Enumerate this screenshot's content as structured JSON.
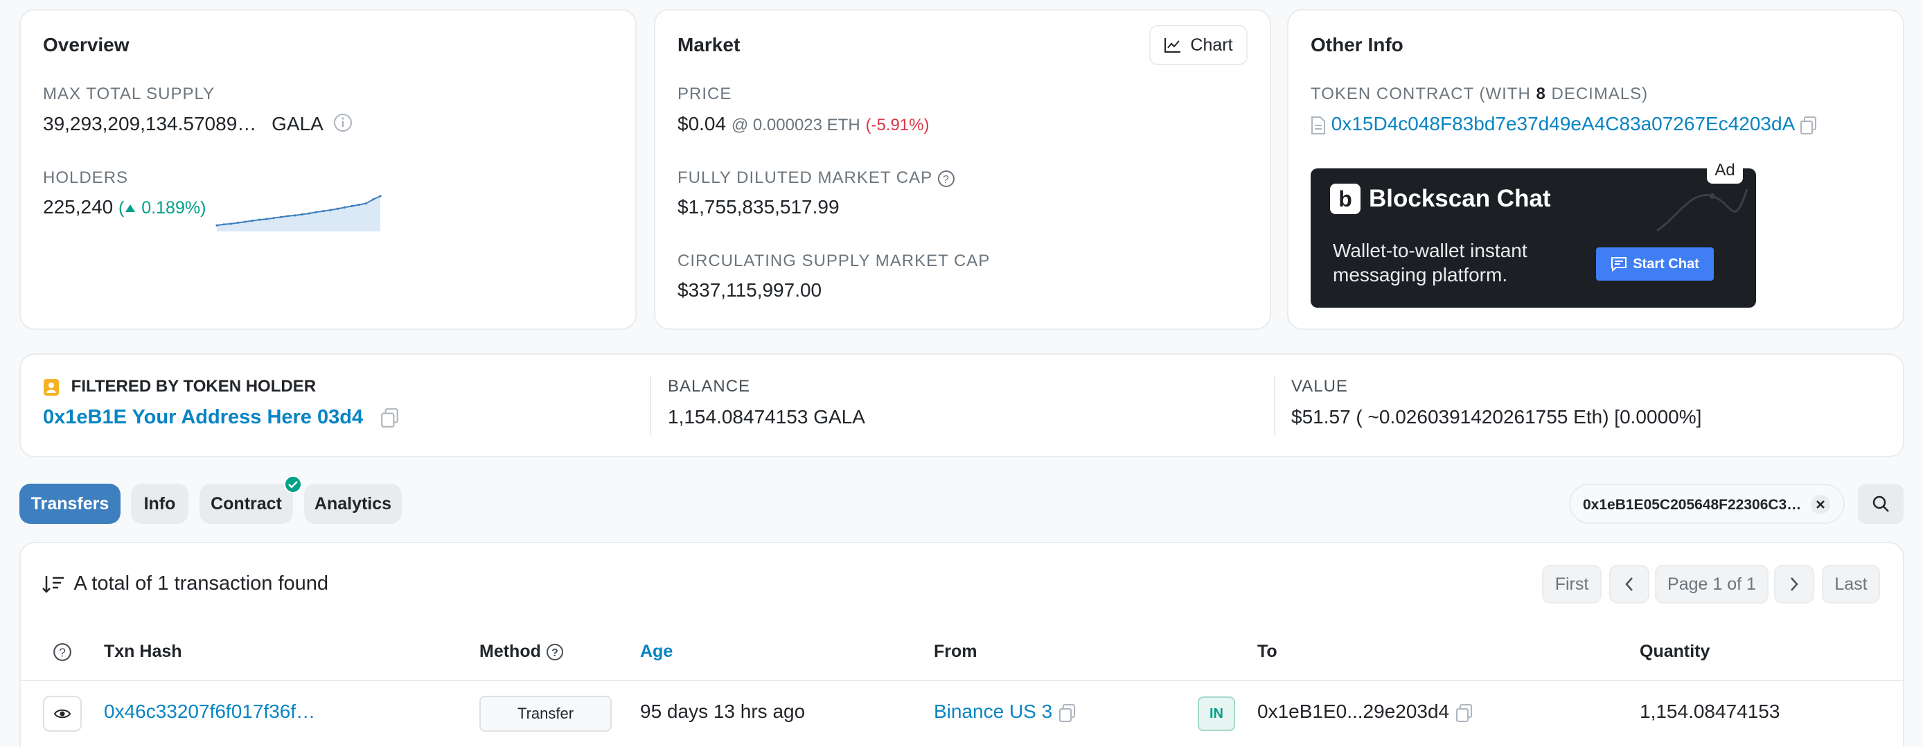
{
  "overview": {
    "title": "Overview",
    "max_supply_label": "MAX TOTAL SUPPLY",
    "max_supply_value": "39,293,209,134.57089…",
    "max_supply_unit": "GALA",
    "holders_label": "HOLDERS",
    "holders_value": "225,240",
    "holders_change": "0.189%",
    "holders_trend": [
      0.12,
      0.15,
      0.17,
      0.2,
      0.23,
      0.26,
      0.29,
      0.31,
      0.34,
      0.37,
      0.4,
      0.42,
      0.45,
      0.48,
      0.52,
      0.55,
      0.58,
      0.62,
      0.66,
      0.7,
      0.74,
      0.78,
      0.9,
      1.0
    ]
  },
  "market": {
    "title": "Market",
    "chart_button": "Chart",
    "price_label": "PRICE",
    "price_value": "$0.04",
    "price_eth": "@ 0.000023 ETH",
    "price_change": "(-5.91%)",
    "fdmc_label": "FULLY DILUTED MARKET CAP",
    "fdmc_value": "$1,755,835,517.99",
    "csmc_label": "CIRCULATING SUPPLY MARKET CAP",
    "csmc_value": "$337,115,997.00"
  },
  "other": {
    "title": "Other Info",
    "contract_label_pre": "TOKEN CONTRACT (WITH ",
    "contract_decimals": "8",
    "contract_label_post": " DECIMALS)",
    "contract_address": "0x15D4c048F83bd7e37d49eA4C83a07267Ec4203dA",
    "ad_badge": "Ad",
    "ad_brand_letter": "b",
    "ad_title": "Blockscan Chat",
    "ad_line1": "Wallet-to-wallet instant",
    "ad_line2": "messaging platform.",
    "ad_button": "Start Chat"
  },
  "filter": {
    "label": "FILTERED BY TOKEN HOLDER",
    "address": "0x1eB1E Your Address Here 03d4",
    "balance_label": "BALANCE",
    "balance_value": "1,154.08474153 GALA",
    "value_label": "VALUE",
    "value_value": "$51.57 ( ~0.0260391420261755 Eth) [0.0000%]"
  },
  "tabs": [
    "Transfers",
    "Info",
    "Contract",
    "Analytics"
  ],
  "search_chip": "0x1eB1E05C205648F22306C3…",
  "table": {
    "summary": "A total of 1 transaction found",
    "pagination": {
      "first": "First",
      "page": "Page 1 of 1",
      "last": "Last"
    },
    "headers": {
      "txn": "Txn Hash",
      "method": "Method",
      "age": "Age",
      "from": "From",
      "to": "To",
      "qty": "Quantity"
    },
    "row": {
      "txn": "0x46c33207f6f017f36f…",
      "method": "Transfer",
      "age": "95 days 13 hrs ago",
      "from": "Binance US 3",
      "direction": "IN",
      "to": "0x1eB1E0...29e203d4",
      "qty": "1,154.08474153"
    }
  },
  "colors": {
    "link": "#0784c3",
    "active_tab": "#3d7fbf",
    "negative": "#dc3545",
    "positive": "#00a186",
    "ad_bg": "#1c1f23",
    "ad_button": "#3f7ef5"
  }
}
